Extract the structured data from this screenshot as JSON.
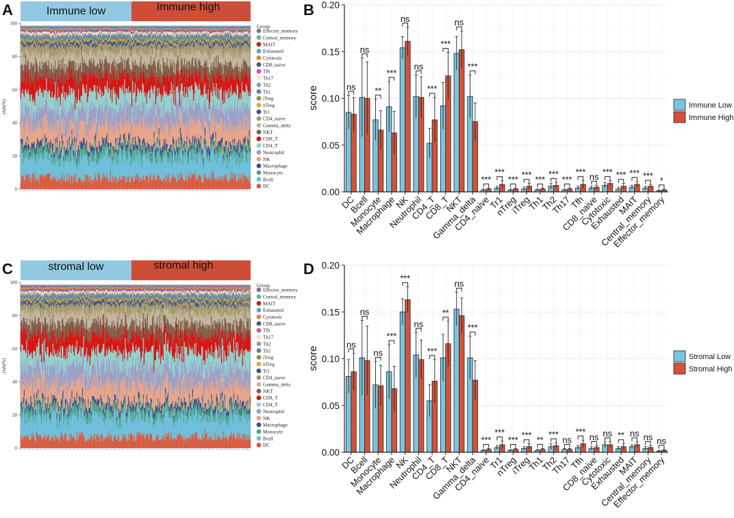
{
  "colors": {
    "low": "#7BC4DF",
    "high": "#D2533A",
    "low_band": "#92C8E2",
    "high_band": "#CD4E36"
  },
  "cell_types": [
    "DC",
    "Bcell",
    "Monocyte",
    "Macrophage",
    "NK",
    "Neutrophil",
    "CD4_T",
    "CD8_T",
    "NKT",
    "Gamma_delta",
    "CD4_naive",
    "Tr1",
    "nTreg",
    "iTreg",
    "Th1",
    "Th2",
    "Th17",
    "Tfh",
    "CD8_naive",
    "Cytotoxic",
    "Exhausted",
    "MAIT",
    "Central_memory",
    "Effector_memory"
  ],
  "legend_groups": [
    {
      "name": "Effector_memory",
      "color": "#7F74A6"
    },
    {
      "name": "Central_memory",
      "color": "#69B69A"
    },
    {
      "name": "MAIT",
      "color": "#B5291E"
    },
    {
      "name": "Exhausted",
      "color": "#5FA4D0"
    },
    {
      "name": "Cytotoxic",
      "color": "#D68A3A"
    },
    {
      "name": "CD8_naive",
      "color": "#455A77"
    },
    {
      "name": "Tfh",
      "color": "#E44CA3"
    },
    {
      "name": "Th17",
      "color": "#EEE8C8"
    },
    {
      "name": "Th2",
      "color": "#8DA59A"
    },
    {
      "name": "Th1",
      "color": "#6680A8"
    },
    {
      "name": "iTreg",
      "color": "#7A9B45"
    },
    {
      "name": "nTreg",
      "color": "#E7A03C"
    },
    {
      "name": "Tr1",
      "color": "#3B558F"
    },
    {
      "name": "CD4_naive",
      "color": "#A4986A"
    },
    {
      "name": "Gamma_delta",
      "color": "#C2B49C"
    },
    {
      "name": "NKT",
      "color": "#7E5F4B"
    },
    {
      "name": "CD8_T",
      "color": "#D8120F"
    },
    {
      "name": "CD4_T",
      "color": "#91D0CC"
    },
    {
      "name": "Neutrophil",
      "color": "#9A9FC7"
    },
    {
      "name": "NK",
      "color": "#E8A387"
    },
    {
      "name": "Macrophage",
      "color": "#3C4D8E"
    },
    {
      "name": "Monocyte",
      "color": "#4DA484"
    },
    {
      "name": "Bcell",
      "color": "#6CBEDA"
    },
    {
      "name": "DC",
      "color": "#D95A3E"
    }
  ],
  "panels": {
    "A": {
      "letter": "A",
      "low_label": "Immune low",
      "high_label": "Immune high",
      "legend_title": "Group",
      "ylabel": "ylab(%)",
      "yticks": [
        "100",
        "80",
        "60",
        "40",
        "20",
        "0"
      ]
    },
    "C": {
      "letter": "C",
      "low_label": "stromal low",
      "high_label": "stromal high",
      "legend_title": "Group",
      "ylabel": "ylab(%)",
      "yticks": [
        "100",
        "80",
        "60",
        "40",
        "20",
        "0"
      ]
    }
  },
  "chart_data": [
    {
      "id": "B",
      "type": "bar",
      "letter": "B",
      "ylabel": "score",
      "ylim": [
        0,
        0.2
      ],
      "yticks": [
        "0.00",
        "0.05",
        "0.10",
        "0.15",
        "0.20"
      ],
      "categories": [
        "DC",
        "Bcell",
        "Monocyte",
        "Macrophage",
        "NK",
        "Neutrophil",
        "CD4_T",
        "CD8_T",
        "NKT",
        "Gamma_delta",
        "CD4_naive",
        "Tr1",
        "nTreg",
        "iTreg",
        "Th1",
        "Th2",
        "Th17",
        "Tfh",
        "CD8_naive",
        "Cytotoxic",
        "Exhausted",
        "MAIT",
        "Central_memory",
        "Effector_memory"
      ],
      "series": [
        {
          "name": "Immune Low",
          "values": [
            0.085,
            0.101,
            0.077,
            0.091,
            0.154,
            0.102,
            0.052,
            0.092,
            0.148,
            0.102,
            0.002,
            0.004,
            0.002,
            0.003,
            0.002,
            0.006,
            0.002,
            0.004,
            0.004,
            0.007,
            0.003,
            0.005,
            0.004,
            0.001
          ],
          "errors": [
            0.018,
            0.042,
            0.022,
            0.027,
            0.012,
            0.023,
            0.016,
            0.025,
            0.018,
            0.023,
            0.001,
            0.002,
            0.001,
            0.002,
            0.001,
            0.003,
            0.001,
            0.002,
            0.002,
            0.003,
            0.002,
            0.002,
            0.002,
            0.001
          ]
        },
        {
          "name": "Immune High",
          "values": [
            0.083,
            0.1,
            0.066,
            0.063,
            0.161,
            0.101,
            0.077,
            0.124,
            0.152,
            0.075,
            0.003,
            0.008,
            0.003,
            0.006,
            0.003,
            0.007,
            0.003,
            0.008,
            0.005,
            0.009,
            0.006,
            0.008,
            0.006,
            0.002
          ],
          "errors": [
            0.018,
            0.039,
            0.021,
            0.023,
            0.015,
            0.022,
            0.024,
            0.025,
            0.02,
            0.02,
            0.001,
            0.004,
            0.001,
            0.003,
            0.001,
            0.003,
            0.001,
            0.004,
            0.002,
            0.003,
            0.003,
            0.003,
            0.002,
            0.001
          ]
        }
      ],
      "significance": [
        "ns",
        "ns",
        "**",
        "***",
        "ns",
        "ns",
        "***",
        "***",
        "ns",
        "***",
        "***",
        "***",
        "***",
        "***",
        "***",
        "***",
        "***",
        "***",
        "ns",
        "***",
        "***",
        "***",
        "***",
        "*"
      ]
    },
    {
      "id": "D",
      "type": "bar",
      "letter": "D",
      "ylabel": "score",
      "ylim": [
        0,
        0.2
      ],
      "yticks": [
        "0.00",
        "0.05",
        "0.10",
        "0.15",
        "0.20"
      ],
      "categories": [
        "DC",
        "Bcell",
        "Monocyte",
        "Macrophage",
        "NK",
        "Neutrophil",
        "CD4_T",
        "CD8_T",
        "NKT",
        "Gamma_delta",
        "CD4_naive",
        "Tr1",
        "nTreg",
        "iTreg",
        "Th1",
        "Th2",
        "Th17",
        "Tfh",
        "CD8_naive",
        "Cytotoxic",
        "Exhausted",
        "MAIT",
        "Central_memory",
        "Effector_memory"
      ],
      "series": [
        {
          "name": "Stromal Low",
          "values": [
            0.081,
            0.101,
            0.072,
            0.086,
            0.15,
            0.104,
            0.055,
            0.101,
            0.153,
            0.101,
            0.002,
            0.005,
            0.002,
            0.004,
            0.002,
            0.006,
            0.003,
            0.005,
            0.004,
            0.008,
            0.004,
            0.006,
            0.004,
            0.001
          ],
          "errors": [
            0.018,
            0.04,
            0.025,
            0.029,
            0.014,
            0.024,
            0.017,
            0.025,
            0.018,
            0.023,
            0.001,
            0.002,
            0.001,
            0.002,
            0.001,
            0.003,
            0.001,
            0.002,
            0.002,
            0.003,
            0.002,
            0.002,
            0.002,
            0.001
          ]
        },
        {
          "name": "Stromal High",
          "values": [
            0.086,
            0.098,
            0.071,
            0.068,
            0.163,
            0.099,
            0.076,
            0.116,
            0.146,
            0.077,
            0.003,
            0.008,
            0.003,
            0.006,
            0.003,
            0.007,
            0.003,
            0.009,
            0.005,
            0.008,
            0.006,
            0.008,
            0.005,
            0.002
          ],
          "errors": [
            0.02,
            0.037,
            0.022,
            0.024,
            0.014,
            0.021,
            0.023,
            0.024,
            0.019,
            0.021,
            0.001,
            0.004,
            0.001,
            0.003,
            0.001,
            0.003,
            0.001,
            0.004,
            0.002,
            0.003,
            0.003,
            0.003,
            0.002,
            0.001
          ]
        }
      ],
      "significance": [
        "ns",
        "ns",
        "ns",
        "***",
        "***",
        "ns",
        "***",
        "**",
        "ns",
        "***",
        "***",
        "***",
        "***",
        "***",
        "**",
        "***",
        "ns",
        "***",
        "ns",
        "ns",
        "**",
        "ns",
        "ns",
        "ns"
      ]
    }
  ]
}
